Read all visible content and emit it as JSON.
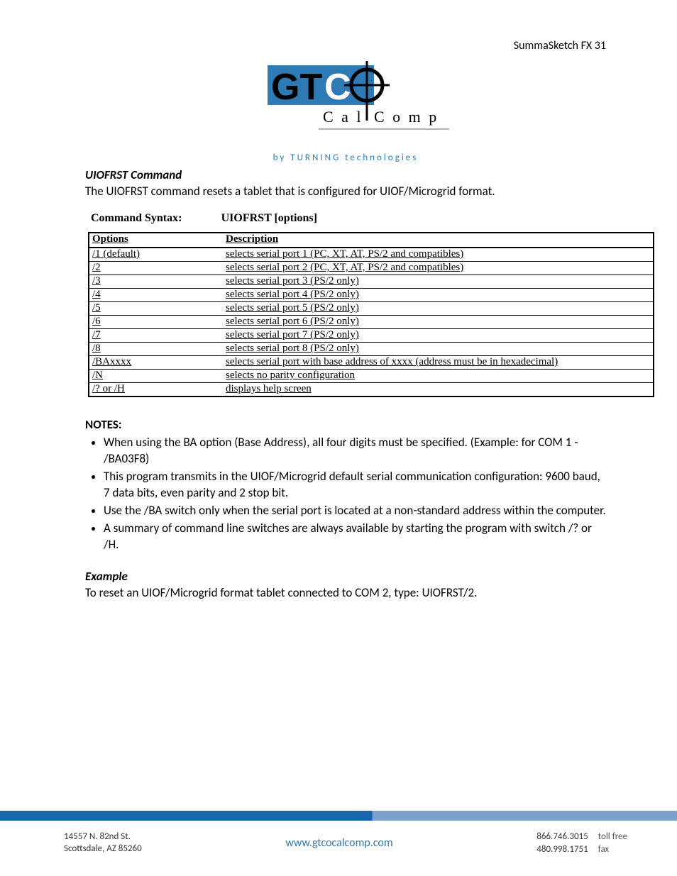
{
  "header": {
    "right": "SummaSketch FX 31"
  },
  "logo": {
    "brand_blue": "#2d7ab5",
    "brand_dark": "#000000",
    "cal": "C a l",
    "comp": "C o m p",
    "tagline": "by  TURNING  technologies"
  },
  "section": {
    "heading": "UIOFRST Command",
    "body": "The UIOFRST command resets a tablet that is configured for UIOF/Microgrid format."
  },
  "syntax": {
    "label": "Command Syntax:",
    "value": "UIOFRST [options]"
  },
  "table": {
    "col_options": "Options",
    "col_description": "Description",
    "rows": [
      {
        "opt": "/1 (default)",
        "desc": "selects serial port 1 (PC, XT, AT, PS/2 and compatibles)"
      },
      {
        "opt": "/2",
        "desc": "selects serial port 2 (PC, XT, AT, PS/2 and compatibles)"
      },
      {
        "opt": "/3",
        "desc": "selects serial port 3 (PS/2 only)"
      },
      {
        "opt": "/4",
        "desc": "selects serial port 4 (PS/2 only)"
      },
      {
        "opt": "/5",
        "desc": "selects serial port 5 (PS/2 only)"
      },
      {
        "opt": "/6",
        "desc": "selects serial port 6 (PS/2 only)"
      },
      {
        "opt": "/7",
        "desc": "selects serial port 7 (PS/2 only)"
      },
      {
        "opt": "/8",
        "desc": "selects serial port 8 (PS/2 only)"
      },
      {
        "opt": "/BAxxxx",
        "desc": "selects serial port with base address of xxxx (address must be in hexadecimal)"
      },
      {
        "opt": "/N",
        "desc": "selects no parity configuration"
      },
      {
        "opt": "/? or /H",
        "desc": "displays help screen"
      }
    ]
  },
  "notes": {
    "heading": "NOTES:",
    "items": [
      "When using the BA option (Base Address), all four digits must be specified. (Example: for COM 1 - /BA03F8)",
      "This program transmits in the UIOF/Microgrid default serial communication configuration: 9600 baud, 7 data bits, even parity and 2 stop bit.",
      "Use the /BA switch only when the serial port is located at a non-standard address within the computer.",
      "A summary of command line switches are always available by starting the program with switch /? or /H."
    ]
  },
  "example": {
    "heading": "Example",
    "text": "To reset an UIOF/Microgrid format tablet connected to COM 2, type: UIOFRST/2."
  },
  "footer": {
    "address_line1": "14557 N. 82nd St.",
    "address_line2": "Scottsdale, AZ 85260",
    "url": "www.gtcocalcomp.com",
    "phone1": "866.746.3015",
    "phone1_label": "toll free",
    "phone2": "480.998.1751",
    "phone2_label": "fax"
  }
}
